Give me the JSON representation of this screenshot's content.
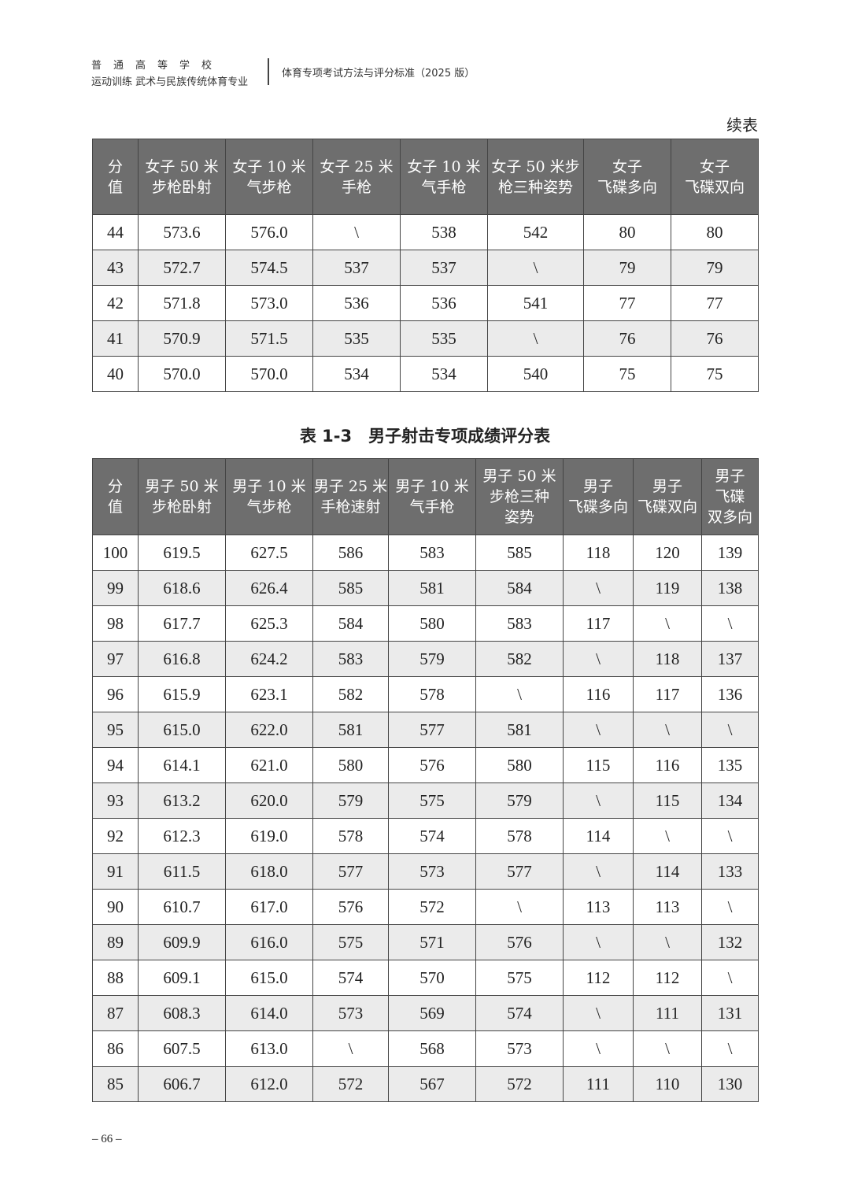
{
  "header": {
    "left_line1": "普　通　高　等　学　校",
    "left_line2": "运动训练 武术与民族传统体育专业",
    "right": "体育专项考试方法与评分标准（2025 版）"
  },
  "continued_label": "续表",
  "table1": {
    "headers": [
      [
        "分",
        "值"
      ],
      [
        "女子 50 米",
        "步枪卧射"
      ],
      [
        "女子 10 米",
        "气步枪"
      ],
      [
        "女子 25 米",
        "手枪"
      ],
      [
        "女子 10 米",
        "气手枪"
      ],
      [
        "女子 50 米步",
        "枪三种姿势"
      ],
      [
        "女子",
        "飞碟多向"
      ],
      [
        "女子",
        "飞碟双向"
      ]
    ],
    "rows": [
      [
        "44",
        "573.6",
        "576.0",
        "\\",
        "538",
        "542",
        "80",
        "80"
      ],
      [
        "43",
        "572.7",
        "574.5",
        "537",
        "537",
        "\\",
        "79",
        "79"
      ],
      [
        "42",
        "571.8",
        "573.0",
        "536",
        "536",
        "541",
        "77",
        "77"
      ],
      [
        "41",
        "570.9",
        "571.5",
        "535",
        "535",
        "\\",
        "76",
        "76"
      ],
      [
        "40",
        "570.0",
        "570.0",
        "534",
        "534",
        "540",
        "75",
        "75"
      ]
    ]
  },
  "table2": {
    "title": "表 1-3　男子射击专项成绩评分表",
    "headers": [
      [
        "分",
        "值"
      ],
      [
        "男子 50 米",
        "步枪卧射"
      ],
      [
        "男子 10 米",
        "气步枪"
      ],
      [
        "男子 25 米",
        "手枪速射"
      ],
      [
        "男子 10 米",
        "气手枪"
      ],
      [
        "男子 50 米",
        "步枪三种",
        "姿势"
      ],
      [
        "男子",
        "飞碟多向"
      ],
      [
        "男子",
        "飞碟双向"
      ],
      [
        "男子",
        "飞碟",
        "双多向"
      ]
    ],
    "rows": [
      [
        "100",
        "619.5",
        "627.5",
        "586",
        "583",
        "585",
        "118",
        "120",
        "139"
      ],
      [
        "99",
        "618.6",
        "626.4",
        "585",
        "581",
        "584",
        "\\",
        "119",
        "138"
      ],
      [
        "98",
        "617.7",
        "625.3",
        "584",
        "580",
        "583",
        "117",
        "\\",
        "\\"
      ],
      [
        "97",
        "616.8",
        "624.2",
        "583",
        "579",
        "582",
        "\\",
        "118",
        "137"
      ],
      [
        "96",
        "615.9",
        "623.1",
        "582",
        "578",
        "\\",
        "116",
        "117",
        "136"
      ],
      [
        "95",
        "615.0",
        "622.0",
        "581",
        "577",
        "581",
        "\\",
        "\\",
        "\\"
      ],
      [
        "94",
        "614.1",
        "621.0",
        "580",
        "576",
        "580",
        "115",
        "116",
        "135"
      ],
      [
        "93",
        "613.2",
        "620.0",
        "579",
        "575",
        "579",
        "\\",
        "115",
        "134"
      ],
      [
        "92",
        "612.3",
        "619.0",
        "578",
        "574",
        "578",
        "114",
        "\\",
        "\\"
      ],
      [
        "91",
        "611.5",
        "618.0",
        "577",
        "573",
        "577",
        "\\",
        "114",
        "133"
      ],
      [
        "90",
        "610.7",
        "617.0",
        "576",
        "572",
        "\\",
        "113",
        "113",
        "\\"
      ],
      [
        "89",
        "609.9",
        "616.0",
        "575",
        "571",
        "576",
        "\\",
        "\\",
        "132"
      ],
      [
        "88",
        "609.1",
        "615.0",
        "574",
        "570",
        "575",
        "112",
        "112",
        "\\"
      ],
      [
        "87",
        "608.3",
        "614.0",
        "573",
        "569",
        "574",
        "\\",
        "111",
        "131"
      ],
      [
        "86",
        "607.5",
        "613.0",
        "\\",
        "568",
        "573",
        "\\",
        "\\",
        "\\"
      ],
      [
        "85",
        "606.7",
        "612.0",
        "572",
        "567",
        "572",
        "111",
        "110",
        "130"
      ]
    ]
  },
  "page_number": "– 66 –"
}
